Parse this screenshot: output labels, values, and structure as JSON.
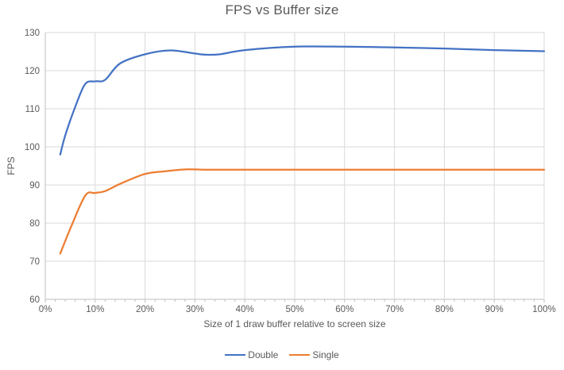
{
  "chart_data": {
    "type": "line",
    "title": "FPS vs Buffer size",
    "xlabel": "Size of 1 draw buffer relative to screen size",
    "ylabel": "FPS",
    "xlim": [
      0,
      100
    ],
    "ylim": [
      60,
      130
    ],
    "x_ticks": [
      "0%",
      "10%",
      "20%",
      "30%",
      "40%",
      "50%",
      "60%",
      "70%",
      "80%",
      "90%",
      "100%"
    ],
    "y_ticks": [
      60,
      70,
      80,
      90,
      100,
      110,
      120,
      130
    ],
    "x_minor_tick_step": 2,
    "grid": true,
    "line_smoothing": true,
    "legend_position": "bottom",
    "series": [
      {
        "name": "Double",
        "color": "#4472C4",
        "points": [
          [
            3,
            98
          ],
          [
            4,
            103
          ],
          [
            6,
            110.5
          ],
          [
            8,
            116.5
          ],
          [
            10,
            117.2
          ],
          [
            12,
            117.6
          ],
          [
            15,
            121.9
          ],
          [
            20,
            124.3
          ],
          [
            25,
            125.3
          ],
          [
            30,
            124.5
          ],
          [
            32,
            124.2
          ],
          [
            35,
            124.3
          ],
          [
            40,
            125.4
          ],
          [
            50,
            126.3
          ],
          [
            60,
            126.3
          ],
          [
            70,
            126.1
          ],
          [
            80,
            125.8
          ],
          [
            90,
            125.4
          ],
          [
            100,
            125.1
          ]
        ]
      },
      {
        "name": "Single",
        "color": "#ED7D31",
        "points": [
          [
            3,
            72
          ],
          [
            5,
            78.5
          ],
          [
            8,
            87.2
          ],
          [
            10,
            87.9
          ],
          [
            12,
            88.4
          ],
          [
            15,
            90.3
          ],
          [
            20,
            92.9
          ],
          [
            24,
            93.6
          ],
          [
            28,
            94.1
          ],
          [
            33,
            94
          ],
          [
            40,
            94
          ],
          [
            50,
            94
          ],
          [
            60,
            94
          ],
          [
            70,
            94
          ],
          [
            80,
            94
          ],
          [
            90,
            94
          ],
          [
            100,
            94
          ]
        ]
      }
    ],
    "colors": {
      "gridline": "#D9D9D9",
      "axis_line": "#BFBFBF",
      "text": "#595959"
    }
  }
}
